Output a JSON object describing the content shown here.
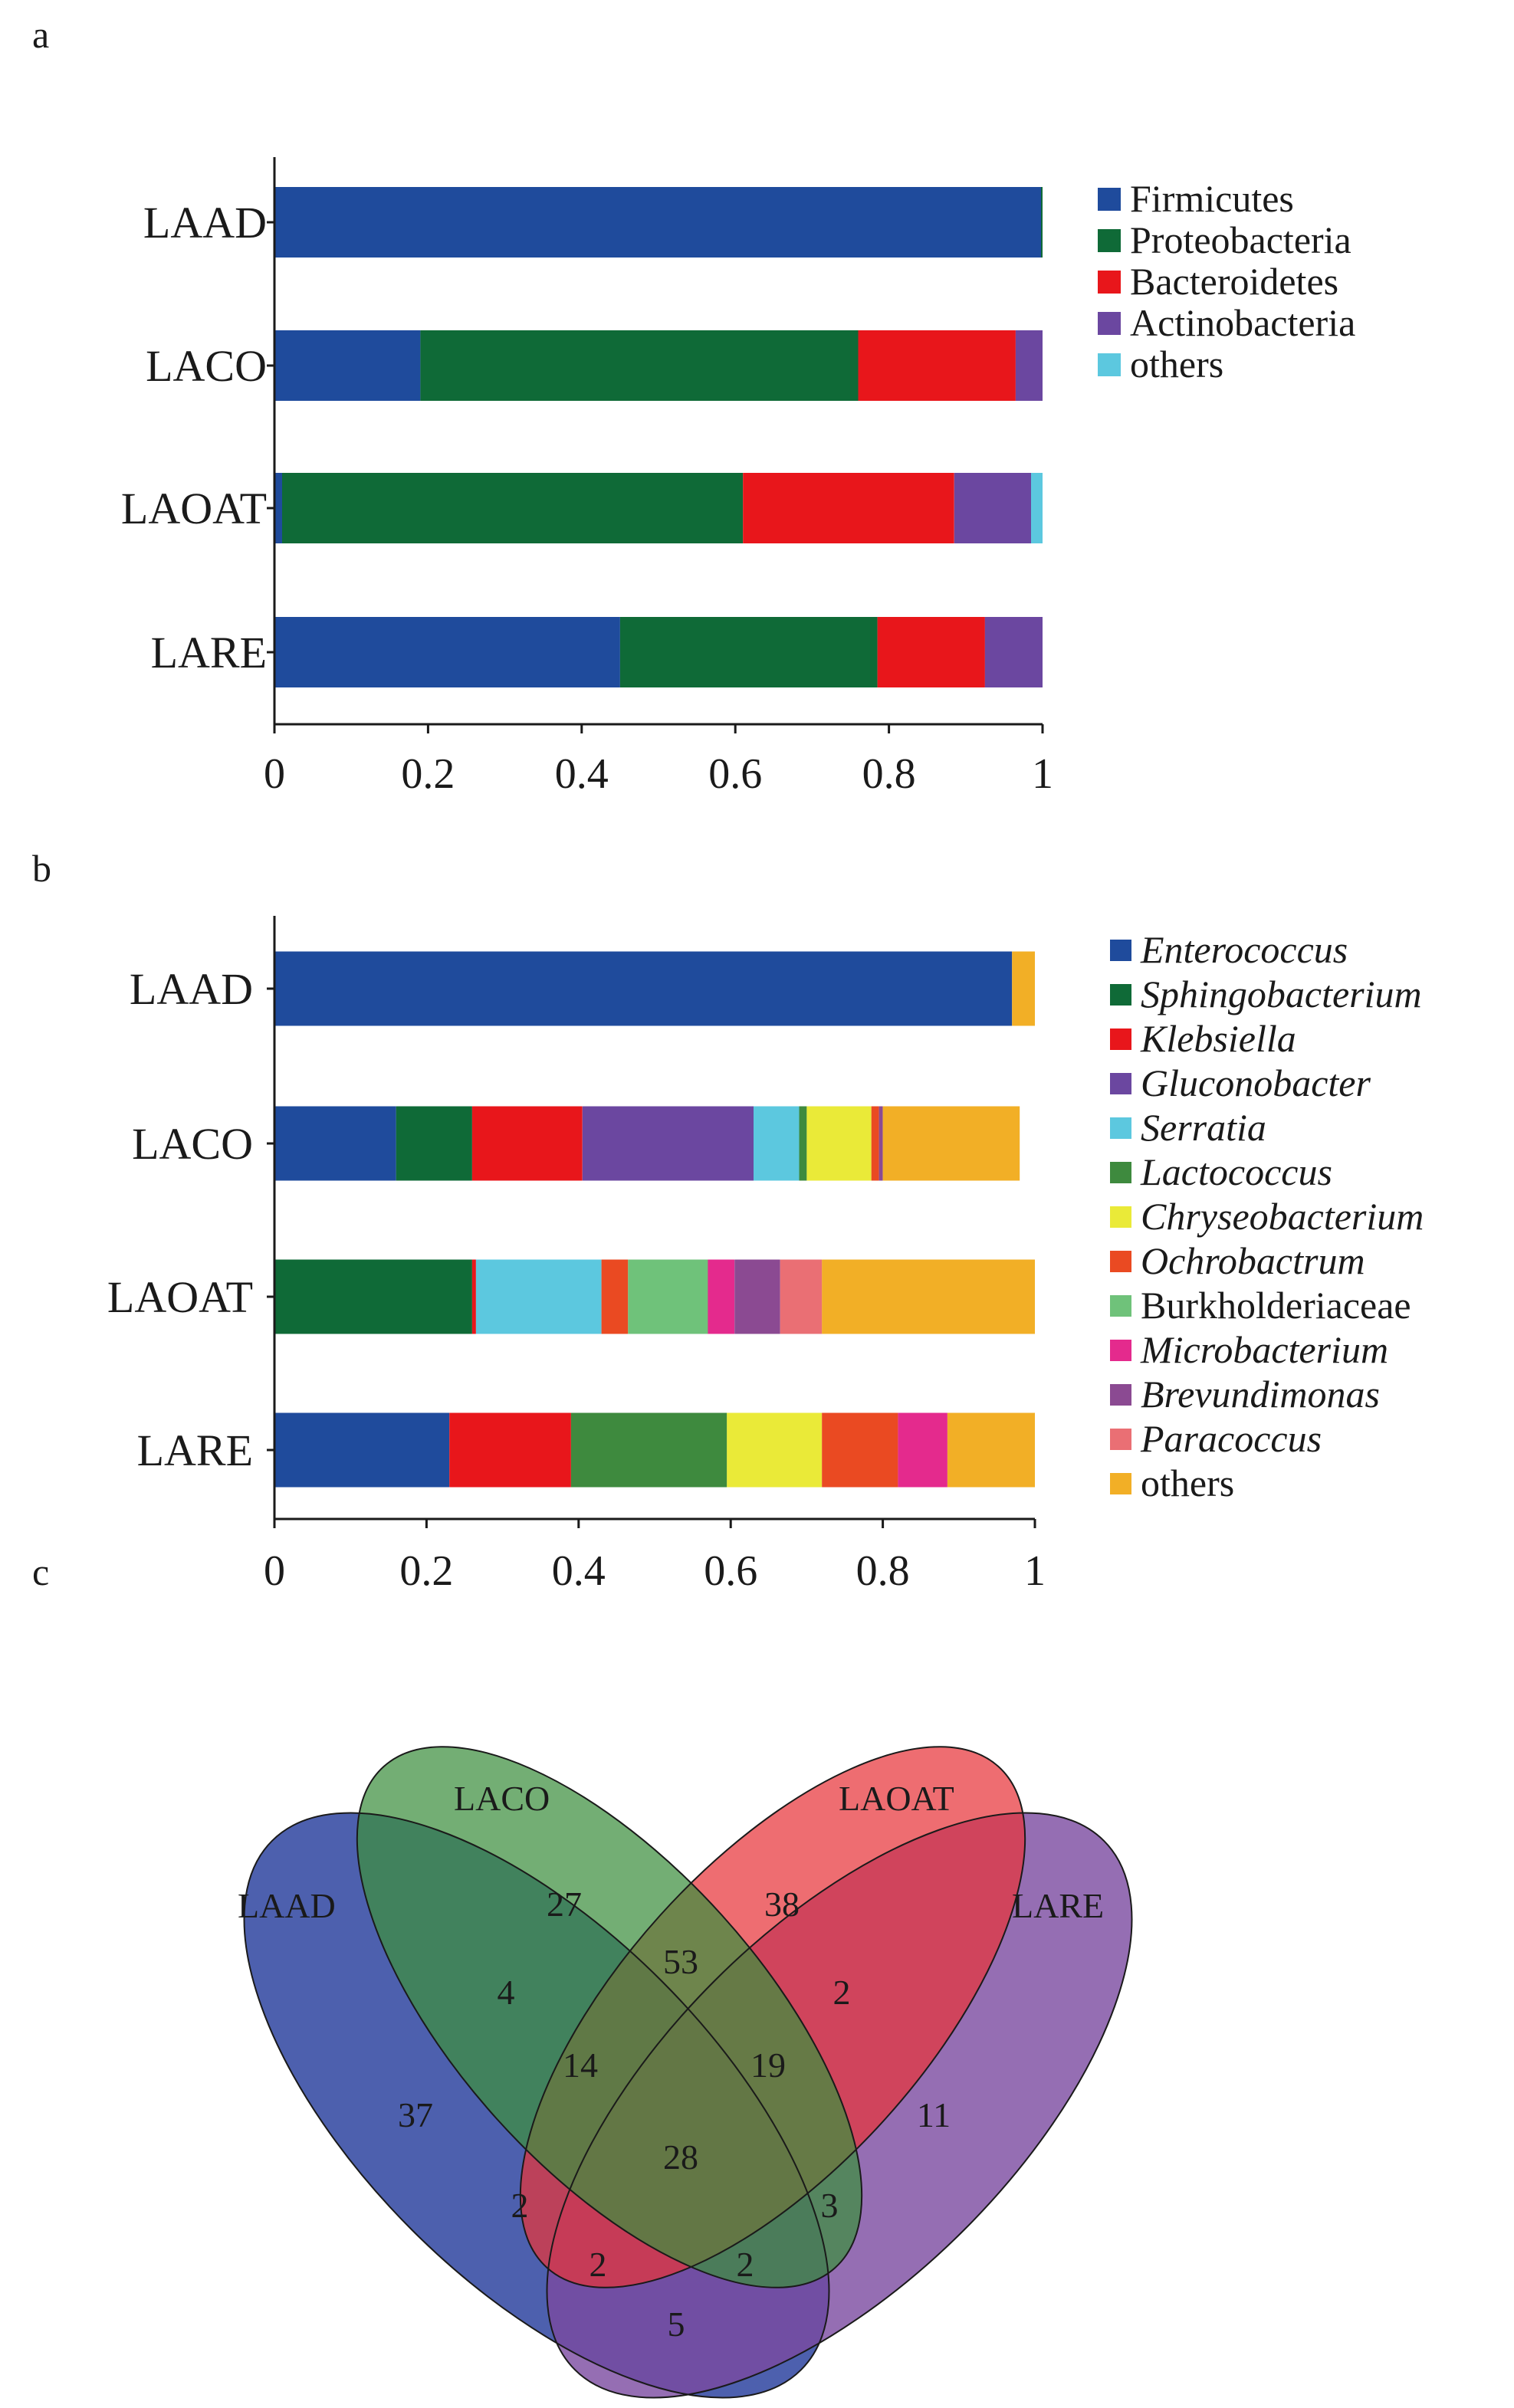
{
  "panels": [
    "a",
    "b",
    "c"
  ],
  "chart_data": [
    {
      "type": "bar",
      "orientation": "horizontal",
      "stacked": true,
      "panel": "a",
      "categories": [
        "LAAD",
        "LACO",
        "LAOAT",
        "LARE"
      ],
      "xlim": [
        0,
        1
      ],
      "xticks": [
        "0",
        "0.2",
        "0.4",
        "0.6",
        "0.8",
        "1"
      ],
      "series": [
        {
          "name": "Firmicutes",
          "color": "#1f4b9c",
          "italic": false,
          "values": [
            0.998,
            0.19,
            0.01,
            0.45
          ]
        },
        {
          "name": "Proteobacteria",
          "color": "#0f6a37",
          "italic": false,
          "values": [
            0.002,
            0.57,
            0.6,
            0.335
          ]
        },
        {
          "name": "Bacteroidetes",
          "color": "#e8161b",
          "italic": false,
          "values": [
            0,
            0.205,
            0.275,
            0.14
          ]
        },
        {
          "name": "Actinobacteria",
          "color": "#6b47a0",
          "italic": false,
          "values": [
            0,
            0.035,
            0.1,
            0.075
          ]
        },
        {
          "name": "others",
          "color": "#5cc8df",
          "italic": false,
          "values": [
            0,
            0,
            0.015,
            0
          ]
        }
      ]
    },
    {
      "type": "bar",
      "orientation": "horizontal",
      "stacked": true,
      "panel": "b",
      "categories": [
        "LAAD",
        "LACO",
        "LAOAT",
        "LARE"
      ],
      "xlim": [
        0,
        1
      ],
      "xticks": [
        "0",
        "0.2",
        "0.4",
        "0.6",
        "0.8",
        "1"
      ],
      "series": [
        {
          "name": "Enterococcus",
          "color": "#1f4b9c",
          "italic": true,
          "values": [
            0.97,
            0.16,
            0,
            0.23
          ]
        },
        {
          "name": "Sphingobacterium",
          "color": "#0f6a37",
          "italic": true,
          "values": [
            0,
            0.1,
            0.26,
            0
          ]
        },
        {
          "name": "Klebsiella",
          "color": "#e8161b",
          "italic": true,
          "values": [
            0,
            0.145,
            0.005,
            0.16
          ]
        },
        {
          "name": "Gluconobacter",
          "color": "#6b47a0",
          "italic": true,
          "values": [
            0,
            0.225,
            0,
            0
          ]
        },
        {
          "name": "Serratia",
          "color": "#5cc8df",
          "italic": true,
          "values": [
            0,
            0.06,
            0.165,
            0
          ]
        },
        {
          "name": "Lactococcus",
          "color": "#3e8a3e",
          "italic": true,
          "values": [
            0,
            0.01,
            0,
            0.205
          ]
        },
        {
          "name": "Chryseobacterium",
          "color": "#eaea38",
          "italic": true,
          "values": [
            0,
            0.085,
            0,
            0.125
          ]
        },
        {
          "name": "Ochrobactrum",
          "color": "#ea4a22",
          "italic": true,
          "values": [
            0,
            0.01,
            0.035,
            0.1
          ]
        },
        {
          "name": "Burkholderiaceae",
          "color": "#6fc27a",
          "italic": false,
          "values": [
            0,
            0,
            0.105,
            0
          ]
        },
        {
          "name": "Microbacterium",
          "color": "#e42a8d",
          "italic": true,
          "values": [
            0,
            0,
            0.035,
            0.065
          ]
        },
        {
          "name": "Brevundimonas",
          "color": "#8b4a92",
          "italic": true,
          "values": [
            0,
            0.005,
            0.06,
            0
          ]
        },
        {
          "name": "Paracoccus",
          "color": "#ea6f74",
          "italic": true,
          "values": [
            0,
            0,
            0.055,
            0
          ]
        },
        {
          "name": "others",
          "color": "#f2af26",
          "italic": false,
          "values": [
            0.03,
            0.18,
            0.28,
            0.115
          ]
        }
      ]
    },
    {
      "type": "venn",
      "panel": "c",
      "sets": [
        {
          "name": "LAAD",
          "color": "#2e44a0"
        },
        {
          "name": "LACO",
          "color": "#3d8f3f"
        },
        {
          "name": "LAOAT",
          "color": "#e8353a"
        },
        {
          "name": "LARE",
          "color": "#7a4aa0"
        }
      ],
      "regions": [
        {
          "sets": [
            "LAAD"
          ],
          "count": "37"
        },
        {
          "sets": [
            "LACO"
          ],
          "count": "27"
        },
        {
          "sets": [
            "LAOAT"
          ],
          "count": "38"
        },
        {
          "sets": [
            "LARE"
          ],
          "count": "11"
        },
        {
          "sets": [
            "LAAD",
            "LACO"
          ],
          "count": "4"
        },
        {
          "sets": [
            "LACO",
            "LAOAT"
          ],
          "count": "53"
        },
        {
          "sets": [
            "LAOAT",
            "LARE"
          ],
          "count": "2"
        },
        {
          "sets": [
            "LAAD",
            "LACO",
            "LAOAT"
          ],
          "count": "14"
        },
        {
          "sets": [
            "LACO",
            "LAOAT",
            "LARE"
          ],
          "count": "19"
        },
        {
          "sets": [
            "LAAD",
            "LACO",
            "LAOAT",
            "LARE"
          ],
          "count": "28"
        },
        {
          "sets": [
            "LAAD",
            "LAOAT"
          ],
          "count": "2"
        },
        {
          "sets": [
            "LACO",
            "LARE"
          ],
          "count": "3"
        },
        {
          "sets": [
            "LAAD",
            "LAOAT",
            "LARE"
          ],
          "count": "2"
        },
        {
          "sets": [
            "LAAD",
            "LACO",
            "LARE"
          ],
          "count": "2"
        },
        {
          "sets": [
            "LAAD",
            "LARE"
          ],
          "count": "5"
        }
      ]
    }
  ]
}
